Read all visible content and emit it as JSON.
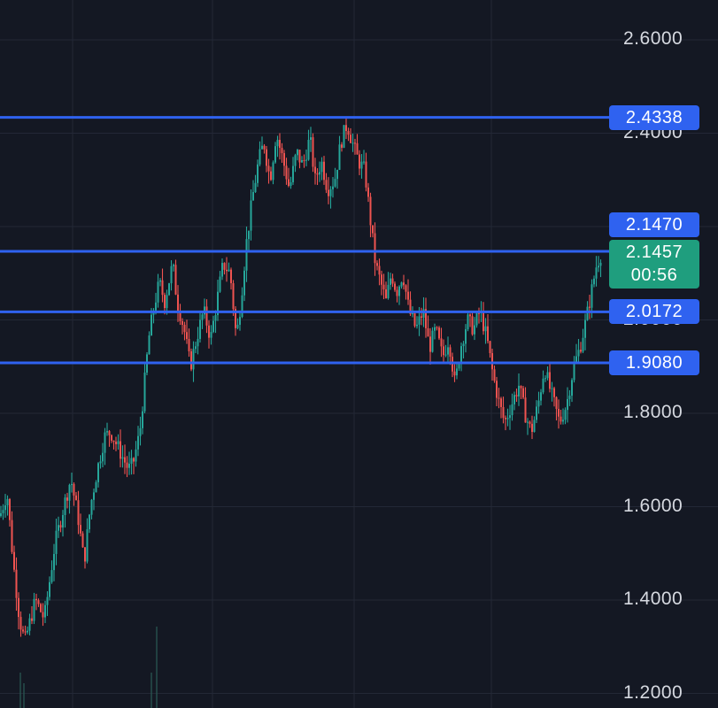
{
  "chart_data": {
    "type": "candlestick",
    "ylim": [
      1.18,
      2.68
    ],
    "y_ticks": [
      "1.2000",
      "1.4000",
      "1.6000",
      "1.8000",
      "2.0000",
      "2.2000",
      "2.4000",
      "2.6000"
    ],
    "grid": true,
    "horizontal_levels": [
      {
        "value": 2.4338,
        "label": "2.4338"
      },
      {
        "value": 2.147,
        "label": "2.1470"
      },
      {
        "value": 2.0172,
        "label": "2.0172"
      },
      {
        "value": 1.908,
        "label": "1.9080"
      }
    ],
    "current_price": {
      "value": 2.1457,
      "label": "2.1457",
      "countdown": "00:56"
    },
    "up_color": "#26a69a",
    "down_color": "#ef5350",
    "level_color": "#2f62f0",
    "price_path": [
      [
        0,
        1.58
      ],
      [
        8,
        1.63
      ],
      [
        15,
        1.48
      ],
      [
        22,
        1.36
      ],
      [
        28,
        1.31
      ],
      [
        40,
        1.4
      ],
      [
        50,
        1.36
      ],
      [
        62,
        1.52
      ],
      [
        72,
        1.6
      ],
      [
        80,
        1.66
      ],
      [
        88,
        1.58
      ],
      [
        95,
        1.48
      ],
      [
        102,
        1.6
      ],
      [
        110,
        1.68
      ],
      [
        118,
        1.75
      ],
      [
        125,
        1.76
      ],
      [
        135,
        1.72
      ],
      [
        145,
        1.68
      ],
      [
        150,
        1.69
      ],
      [
        158,
        1.76
      ],
      [
        163,
        1.86
      ],
      [
        168,
        1.96
      ],
      [
        174,
        2.03
      ],
      [
        180,
        2.08
      ],
      [
        186,
        2.04
      ],
      [
        195,
        2.12
      ],
      [
        200,
        2.04
      ],
      [
        208,
        1.98
      ],
      [
        215,
        1.9
      ],
      [
        222,
        1.96
      ],
      [
        230,
        2.02
      ],
      [
        238,
        1.96
      ],
      [
        245,
        2.04
      ],
      [
        252,
        2.12
      ],
      [
        260,
        2.1
      ],
      [
        267,
        1.96
      ],
      [
        272,
        2.04
      ],
      [
        278,
        2.16
      ],
      [
        285,
        2.26
      ],
      [
        292,
        2.34
      ],
      [
        298,
        2.38
      ],
      [
        305,
        2.3
      ],
      [
        312,
        2.4
      ],
      [
        320,
        2.34
      ],
      [
        327,
        2.28
      ],
      [
        335,
        2.36
      ],
      [
        342,
        2.33
      ],
      [
        350,
        2.39
      ],
      [
        356,
        2.3
      ],
      [
        363,
        2.34
      ],
      [
        370,
        2.28
      ],
      [
        378,
        2.3
      ],
      [
        385,
        2.38
      ],
      [
        392,
        2.42
      ],
      [
        398,
        2.38
      ],
      [
        405,
        2.34
      ],
      [
        412,
        2.32
      ],
      [
        418,
        2.22
      ],
      [
        424,
        2.12
      ],
      [
        430,
        2.08
      ],
      [
        436,
        2.04
      ],
      [
        442,
        2.1
      ],
      [
        448,
        2.06
      ],
      [
        455,
        2.1
      ],
      [
        462,
        2.02
      ],
      [
        470,
        1.98
      ],
      [
        478,
        2.02
      ],
      [
        485,
        1.94
      ],
      [
        492,
        1.98
      ],
      [
        500,
        1.92
      ],
      [
        507,
        1.96
      ],
      [
        514,
        1.86
      ],
      [
        520,
        1.94
      ],
      [
        528,
        2.0
      ],
      [
        535,
        1.98
      ],
      [
        542,
        2.02
      ],
      [
        550,
        1.96
      ],
      [
        557,
        1.88
      ],
      [
        564,
        1.82
      ],
      [
        570,
        1.78
      ],
      [
        578,
        1.82
      ],
      [
        586,
        1.86
      ],
      [
        593,
        1.8
      ],
      [
        600,
        1.76
      ],
      [
        608,
        1.82
      ],
      [
        615,
        1.9
      ],
      [
        620,
        1.86
      ],
      [
        626,
        1.82
      ],
      [
        632,
        1.78
      ],
      [
        640,
        1.82
      ],
      [
        648,
        1.9
      ],
      [
        655,
        1.94
      ],
      [
        662,
        2.0
      ],
      [
        668,
        2.06
      ],
      [
        674,
        2.12
      ],
      [
        680,
        2.1457
      ]
    ]
  }
}
